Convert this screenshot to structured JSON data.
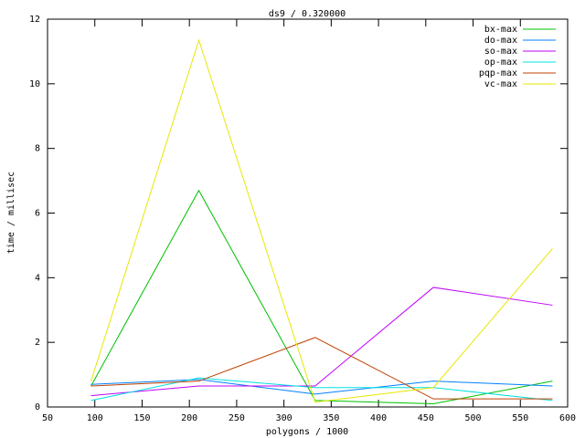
{
  "chart_data": {
    "type": "line",
    "title": "ds9 / 0.320000",
    "x_label": "polygons / 1000",
    "y_label": "time / millisec",
    "x": [
      96,
      210,
      333,
      458,
      584
    ],
    "series": [
      {
        "name": "bx-max",
        "color": "#00c000",
        "values": [
          0.65,
          6.7,
          0.2,
          0.1,
          0.8
        ]
      },
      {
        "name": "do-max",
        "color": "#0080ff",
        "values": [
          0.7,
          0.85,
          0.4,
          0.8,
          0.65
        ]
      },
      {
        "name": "so-max",
        "color": "#c000ff",
        "values": [
          0.35,
          0.65,
          0.65,
          3.7,
          3.15
        ]
      },
      {
        "name": "op-max",
        "color": "#00e0e0",
        "values": [
          0.2,
          0.9,
          0.6,
          0.6,
          0.2
        ]
      },
      {
        "name": "pqp-max",
        "color": "#c04000",
        "values": [
          0.65,
          0.8,
          2.15,
          0.25,
          0.25
        ]
      },
      {
        "name": "vc-max",
        "color": "#e8e800",
        "values": [
          0.8,
          11.35,
          0.15,
          0.6,
          4.9
        ]
      }
    ],
    "xlim": [
      50,
      600
    ],
    "xticks": [
      50,
      100,
      150,
      200,
      250,
      300,
      350,
      400,
      450,
      500,
      550,
      600
    ],
    "ylim": [
      0,
      12
    ],
    "yticks": [
      0,
      2,
      4,
      6,
      8,
      10,
      12
    ],
    "grid": false,
    "legend": "top-right"
  }
}
